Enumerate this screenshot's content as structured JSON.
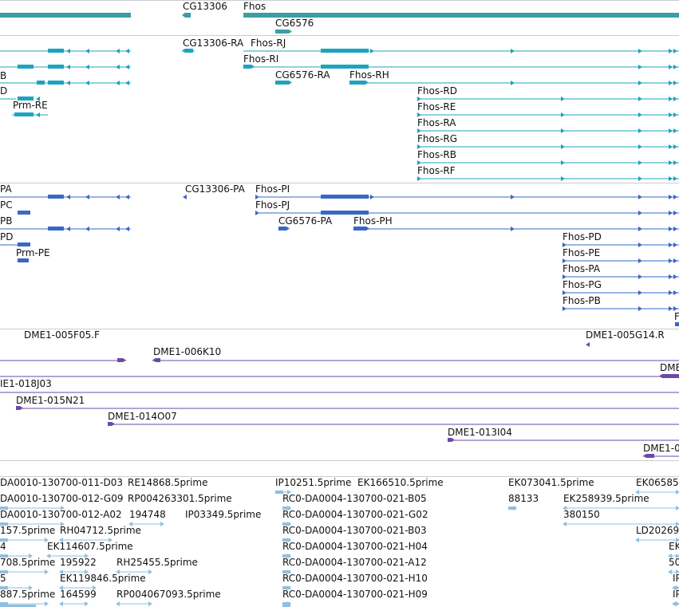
{
  "genes": {
    "labels": [
      "CG13306",
      "Fhos",
      "CG6576"
    ]
  },
  "transcripts": {
    "labels": [
      "CG13306-RA",
      "Fhos-RJ",
      "Fhos-RI",
      "B",
      "D",
      "CG6576-RA",
      "Fhos-RH",
      "Prm-RE",
      "Fhos-RD",
      "Fhos-RE",
      "Fhos-RA",
      "Fhos-RG",
      "Fhos-RB",
      "Fhos-RF"
    ]
  },
  "proteins": {
    "labels": [
      "PA",
      "CG13306-PA",
      "Fhos-PI",
      "PC",
      "Fhos-PJ",
      "PB",
      "CG6576-PA",
      "Fhos-PH",
      "PD",
      "Prm-PE",
      "Fhos-PD",
      "Fhos-PE",
      "Fhos-PA",
      "Fhos-PG",
      "Fhos-PB",
      "F"
    ]
  },
  "clones": {
    "labels": [
      "DME1-005F05.F",
      "DME1-005G14.R",
      "DME1-006K10",
      "DME",
      "IE1-018J03",
      "DME1-015N21",
      "DME1-014O07",
      "DME1-013I04",
      "DME1-0"
    ]
  },
  "ests": {
    "labels": [
      "DA0010-130700-011-D03",
      "RE14868.5prime",
      "IP10251.5prime",
      "EK166510.5prime",
      "EK073041.5prime",
      "EK06585",
      "DA0010-130700-012-G09",
      "RP004263301.5prime",
      "RC0-DA0004-130700-021-B05",
      "88133",
      "EK258939.5prime",
      "DA0010-130700-012-A02",
      "194748",
      "IP03349.5prime",
      "RC0-DA0004-130700-021-G02",
      "380150",
      "157.5prime",
      "RH04712.5prime",
      "RC0-DA0004-130700-021-B03",
      "LD20269",
      "4",
      "EK114607.5prime",
      "RC0-DA0004-130700-021-H04",
      "EK",
      "708.5prime",
      "195922",
      "RH25455.5prime",
      "RC0-DA0004-130700-021-A12",
      "50",
      "5",
      "EK119846.5prime",
      "RC0-DA0004-130700-021-H10",
      "IP",
      "887.5prime",
      "164599",
      "RP004067093.5prime",
      "RC0-DA0004-130700-021-H09",
      "IP"
    ]
  },
  "colors": {
    "gene": "#3a9ea3",
    "transcript": "#1da3bf",
    "protein": "#3a67c4",
    "clone": "#6a4aa8",
    "est": "#8fc0df",
    "separator": "#c9ccd0"
  }
}
